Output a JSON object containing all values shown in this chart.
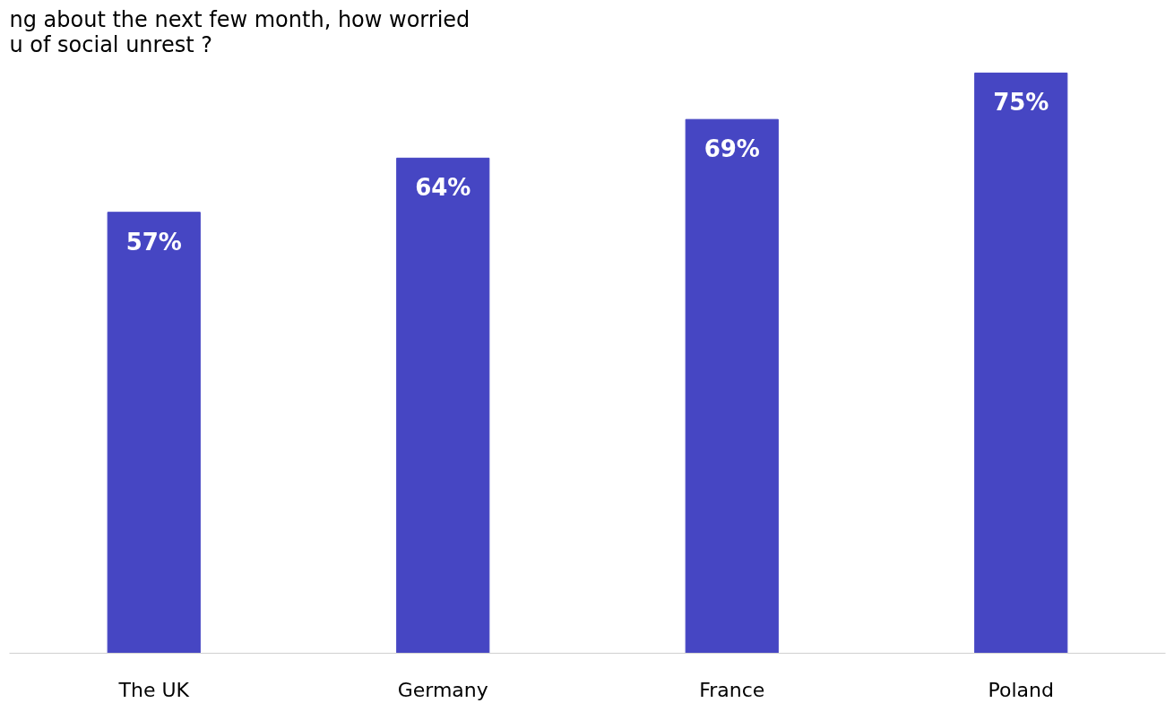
{
  "chart_data": {
    "type": "bar",
    "title": "ng about the next few month, how worried\nu of social unrest ?",
    "categories": [
      "The UK",
      "Germany",
      "France",
      "Poland"
    ],
    "values": [
      57,
      64,
      69,
      75
    ],
    "color": "#4646c3",
    "data_labels": true,
    "value_labels": [
      "57%",
      "64%",
      "69%",
      "75%"
    ],
    "grid": false
  }
}
